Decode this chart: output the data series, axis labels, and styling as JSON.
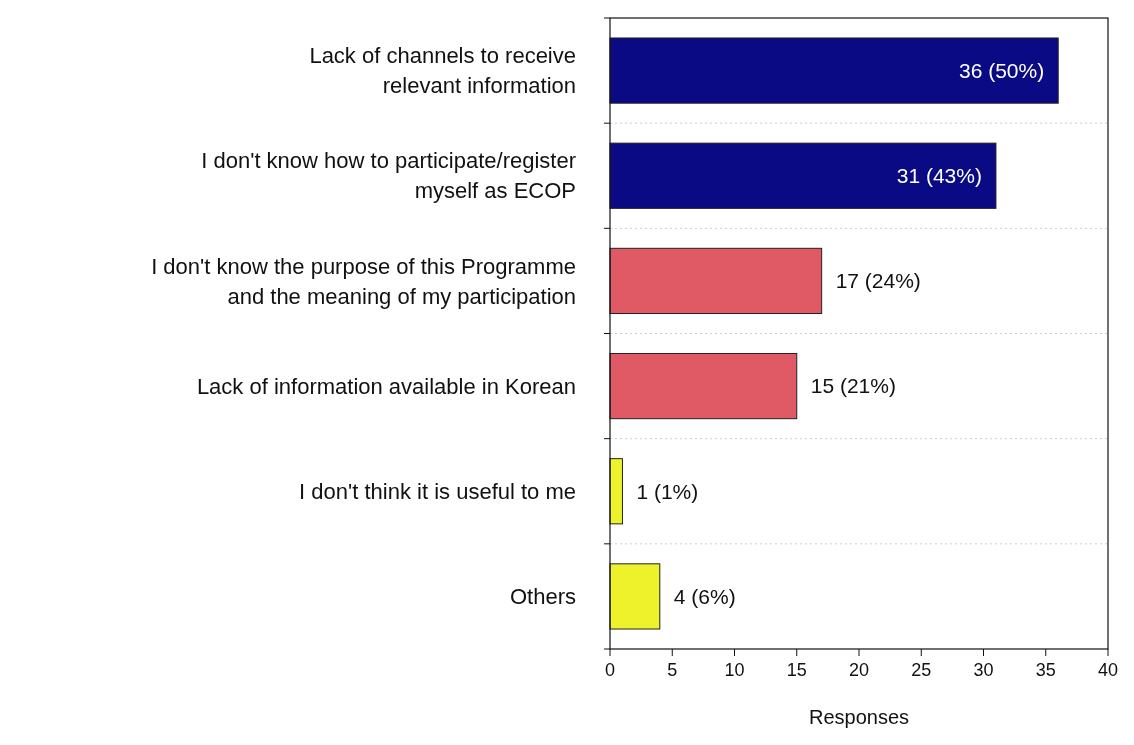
{
  "chart_data": {
    "type": "bar",
    "orientation": "horizontal",
    "categories": [
      "Lack of channels to receive\nrelevant information",
      "I don't know how to participate/register\nmyself as ECOP",
      "I don't know the purpose of this Programme\nand the meaning of my participation",
      "Lack of information available in Korean",
      "I don't think it is useful to me",
      "Others"
    ],
    "values": [
      36,
      31,
      17,
      15,
      1,
      4
    ],
    "colors": [
      "#0a0a84",
      "#0a0a84",
      "#e05a66",
      "#e05a66",
      "#eef22a",
      "#eef22a"
    ],
    "value_labels": [
      "36 (50%)",
      "31 (43%)",
      "17 (24%)",
      "15 (21%)",
      "1 (1%)",
      "4 (6%)"
    ],
    "xlim": [
      0,
      40
    ],
    "xticks": [
      0,
      5,
      10,
      15,
      20,
      25,
      30,
      35,
      40
    ],
    "xlabel": "Responses",
    "grid": "y"
  }
}
